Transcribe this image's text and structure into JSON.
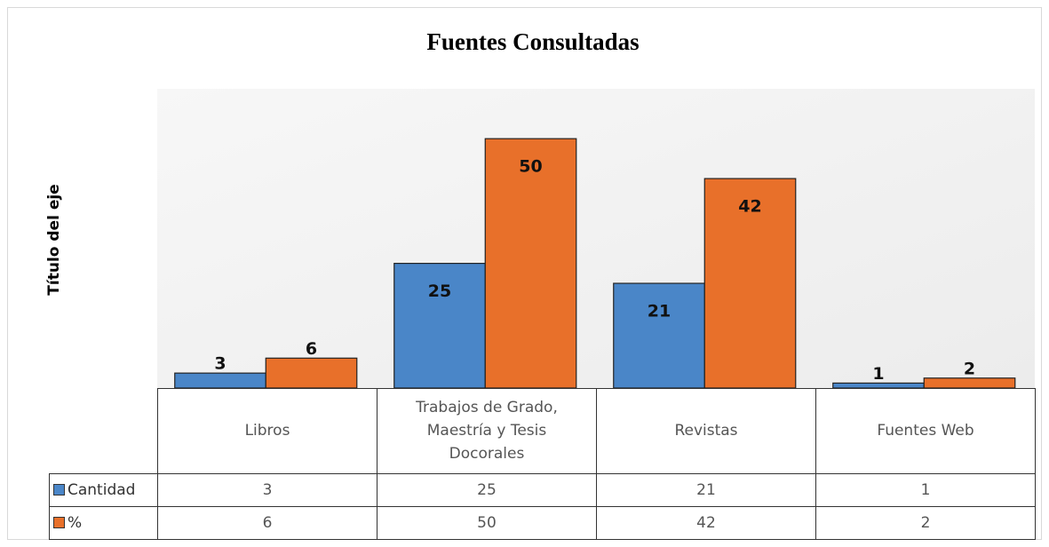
{
  "chart_data": {
    "type": "bar",
    "title": "Fuentes Consultadas",
    "y_label": "Título del eje",
    "categories": [
      "Libros",
      "Trabajos de Grado, Maestría y Tesis Docorales",
      "Revistas",
      "Fuentes Web"
    ],
    "series": [
      {
        "name": "Cantidad",
        "color": "#4a86c8",
        "values": [
          3,
          25,
          21,
          1
        ]
      },
      {
        "name": "%",
        "color": "#e8702a",
        "values": [
          6,
          50,
          42,
          2
        ]
      }
    ],
    "ylim": [
      0,
      60
    ]
  }
}
